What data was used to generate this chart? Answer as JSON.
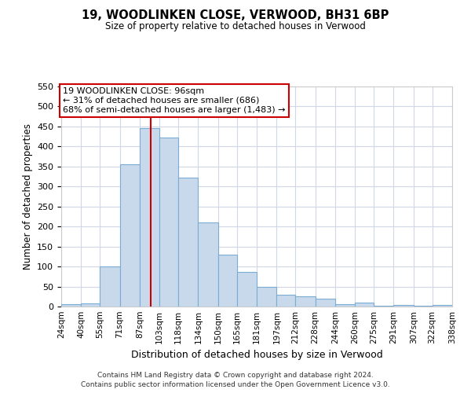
{
  "title": "19, WOODLINKEN CLOSE, VERWOOD, BH31 6BP",
  "subtitle": "Size of property relative to detached houses in Verwood",
  "xlabel": "Distribution of detached houses by size in Verwood",
  "ylabel": "Number of detached properties",
  "bar_color": "#c9d9ec",
  "bar_edge_color": "#7aacd4",
  "background_color": "#ffffff",
  "grid_color": "#d0d8e8",
  "bins": [
    24,
    40,
    55,
    71,
    87,
    103,
    118,
    134,
    150,
    165,
    181,
    197,
    212,
    228,
    244,
    260,
    275,
    291,
    307,
    322,
    338
  ],
  "counts": [
    5,
    7,
    101,
    355,
    446,
    422,
    322,
    210,
    129,
    86,
    49,
    29,
    25,
    19,
    6,
    10,
    1,
    4,
    1,
    3
  ],
  "tick_labels": [
    "24sqm",
    "40sqm",
    "55sqm",
    "71sqm",
    "87sqm",
    "103sqm",
    "118sqm",
    "134sqm",
    "150sqm",
    "165sqm",
    "181sqm",
    "197sqm",
    "212sqm",
    "228sqm",
    "244sqm",
    "260sqm",
    "275sqm",
    "291sqm",
    "307sqm",
    "322sqm",
    "338sqm"
  ],
  "vline_x": 96,
  "vline_color": "#cc0000",
  "ylim": [
    0,
    550
  ],
  "yticks": [
    0,
    50,
    100,
    150,
    200,
    250,
    300,
    350,
    400,
    450,
    500,
    550
  ],
  "annotation_line1": "19 WOODLINKEN CLOSE: 96sqm",
  "annotation_line2": "← 31% of detached houses are smaller (686)",
  "annotation_line3": "68% of semi-detached houses are larger (1,483) →",
  "annotation_box_edge": "#cc0000",
  "footer_line1": "Contains HM Land Registry data © Crown copyright and database right 2024.",
  "footer_line2": "Contains public sector information licensed under the Open Government Licence v3.0."
}
